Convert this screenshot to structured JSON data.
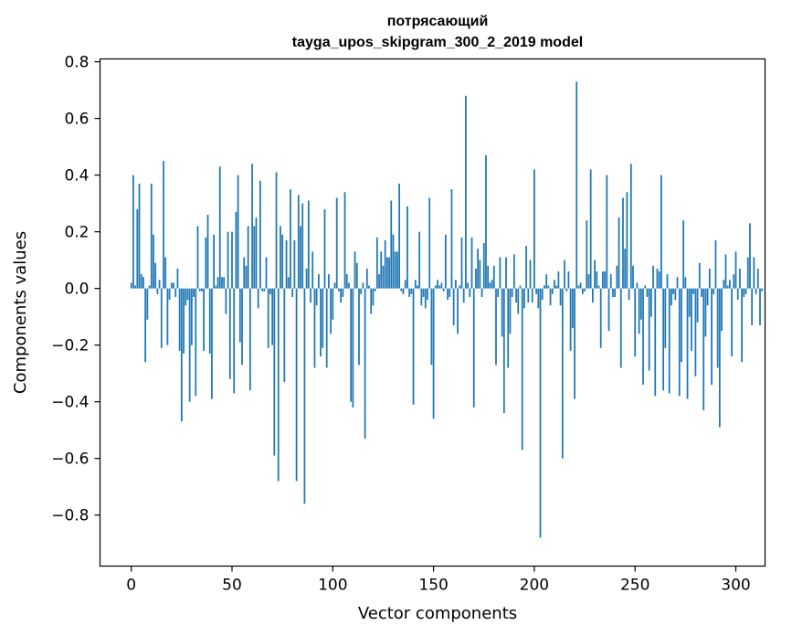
{
  "chart_data": {
    "type": "bar",
    "title": "потрясающий",
    "subtitle": "tayga_upos_skipgram_300_2_2019 model",
    "xlabel": "Vector components",
    "ylabel": "Components values",
    "xlim": [
      -15.5,
      314.5
    ],
    "ylim": [
      -0.98,
      0.81
    ],
    "xticks": [
      0,
      50,
      100,
      150,
      200,
      250,
      300
    ],
    "yticks": [
      -0.8,
      -0.6,
      -0.4,
      -0.2,
      0.0,
      0.2,
      0.4,
      0.6,
      0.8
    ],
    "ytick_labels": [
      "−0.8",
      "−0.6",
      "−0.4",
      "−0.2",
      "0.0",
      "0.2",
      "0.4",
      "0.6",
      "0.8"
    ],
    "grid": false,
    "bar_color": "#1f77b4",
    "values": [
      0.02,
      0.4,
      0.01,
      0.28,
      0.37,
      0.05,
      0.04,
      -0.26,
      -0.11,
      0.01,
      0.37,
      0.19,
      0.09,
      -0.02,
      0.03,
      -0.21,
      0.45,
      0.11,
      -0.2,
      -0.04,
      0.02,
      0.02,
      -0.03,
      0.07,
      -0.22,
      -0.47,
      -0.23,
      -0.06,
      -0.04,
      -0.4,
      -0.2,
      -0.03,
      -0.38,
      0.22,
      -0.01,
      -0.01,
      -0.22,
      0.18,
      0.26,
      -0.23,
      -0.39,
      0.19,
      0.01,
      0.04,
      0.43,
      0.04,
      0.04,
      -0.09,
      0.2,
      -0.32,
      0.2,
      -0.37,
      0.27,
      0.4,
      -0.19,
      -0.27,
      0.11,
      0.08,
      0.22,
      -0.36,
      0.44,
      0.22,
      0.25,
      -0.07,
      0.38,
      -0.01,
      -0.01,
      0.11,
      -0.21,
      -0.02,
      -0.2,
      -0.59,
      0.41,
      -0.68,
      0.22,
      0.19,
      -0.33,
      0.17,
      0.04,
      0.35,
      -0.03,
      0.17,
      -0.68,
      0.33,
      0.22,
      0.3,
      -0.76,
      0.07,
      0.31,
      -0.05,
      0.13,
      -0.28,
      -0.06,
      0.05,
      -0.24,
      -0.21,
      0.28,
      -0.28,
      0.05,
      -0.16,
      -0.11,
      0.02,
      0.32,
      -0.01,
      -0.05,
      -0.03,
      0.34,
      0.05,
      0.02,
      -0.4,
      -0.42,
      0.13,
      0.09,
      -0.27,
      -0.02,
      0.02,
      -0.53,
      0.07,
      0.01,
      -0.09,
      -0.06,
      -0.01,
      0.18,
      0.05,
      0.13,
      0.08,
      0.17,
      0.11,
      0.11,
      0.31,
      0.19,
      0.13,
      0.13,
      0.37,
      -0.01,
      -0.02,
      0.03,
      0.29,
      -0.03,
      -0.02,
      -0.41,
      0.03,
      0.01,
      0.2,
      -0.06,
      -0.03,
      -0.07,
      -0.04,
      0.32,
      -0.27,
      -0.46,
      0.01,
      0.03,
      0.01,
      0.02,
      -0.01,
      0.19,
      -0.04,
      -0.03,
      0.35,
      -0.13,
      0.03,
      -0.16,
      0.01,
      0.18,
      -0.05,
      0.68,
      0.02,
      -0.03,
      0.18,
      -0.42,
      0.07,
      0.14,
      0.1,
      -0.03,
      0.16,
      0.47,
      0.08,
      0.02,
      0.03,
      0.08,
      -0.27,
      -0.03,
      0.11,
      -0.17,
      -0.44,
      0.11,
      -0.28,
      -0.16,
      -0.03,
      0.12,
      -0.05,
      -0.09,
      0.01,
      -0.57,
      -0.07,
      0.15,
      -0.05,
      0.1,
      -0.05,
      0.42,
      -0.02,
      -0.07,
      -0.88,
      -0.04,
      0.01,
      0.05,
      0.01,
      -0.06,
      -0.02,
      0.03,
      0.01,
      0.06,
      -0.06,
      -0.6,
      0.1,
      -0.01,
      0.06,
      -0.22,
      -0.14,
      -0.39,
      0.73,
      0.01,
      0.02,
      -0.02,
      -0.01,
      0.24,
      0.05,
      0.42,
      -0.05,
      0.1,
      0.06,
      0.01,
      -0.21,
      0.06,
      0.06,
      0.4,
      -0.15,
      0.05,
      -0.03,
      -0.03,
      0.08,
      0.25,
      -0.28,
      0.32,
      0.14,
      0.34,
      -0.04,
      0.44,
      0.08,
      -0.24,
      0.02,
      -0.16,
      -0.11,
      -0.34,
      0.01,
      -0.03,
      -0.29,
      -0.1,
      0.08,
      -0.38,
      0.07,
      0.06,
      0.4,
      -0.36,
      -0.21,
      0.05,
      -0.37,
      -0.06,
      -0.02,
      -0.04,
      0.04,
      -0.38,
      -0.26,
      0.24,
      0.04,
      -0.39,
      -0.1,
      -0.22,
      -0.02,
      -0.31,
      -0.12,
      0.09,
      -0.03,
      -0.43,
      -0.17,
      -0.06,
      0.07,
      -0.34,
      -0.02,
      0.17,
      -0.28,
      -0.49,
      -0.15,
      0.03,
      0.12,
      0.01,
      0.03,
      -0.24,
      0.05,
      0.13,
      -0.04,
      0.07,
      -0.26,
      -0.03,
      -0.02,
      0.11,
      0.23,
      -0.13,
      0.11,
      -0.02,
      0.07,
      -0.13,
      -0.01
    ]
  }
}
